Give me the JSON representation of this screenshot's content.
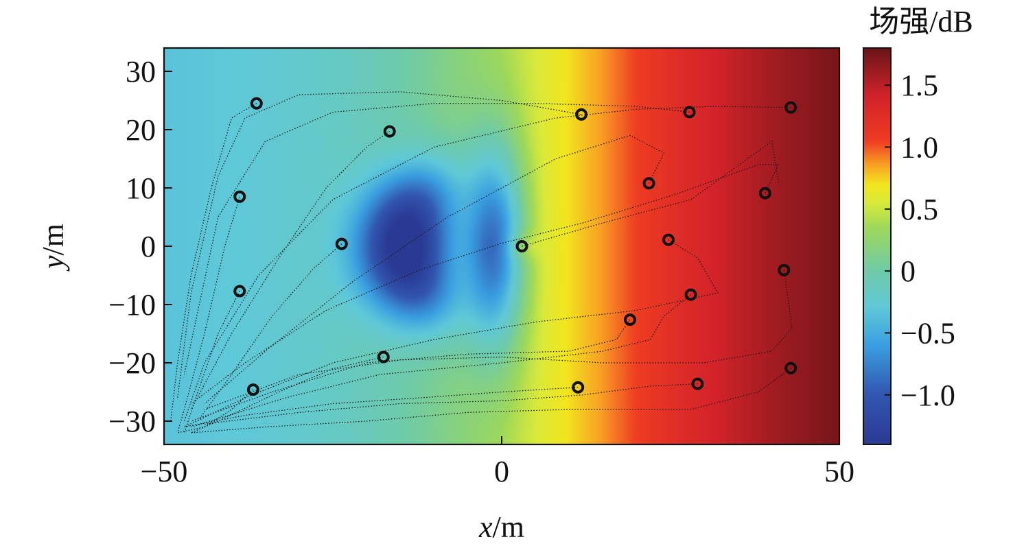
{
  "chart_data": {
    "type": "heatmap",
    "xlabel": {
      "var": "x",
      "unit": "/m"
    },
    "ylabel": {
      "var": "y",
      "unit": "/m"
    },
    "xlim": [
      -50,
      50
    ],
    "ylim": [
      -34,
      34
    ],
    "x_ticks": [
      -50,
      0,
      50
    ],
    "x_tick_labels": [
      "−50",
      "0",
      "50"
    ],
    "y_ticks": [
      30,
      20,
      10,
      0,
      -10,
      -20,
      -30
    ],
    "y_tick_labels": [
      "30",
      "20",
      "10",
      "0",
      "−10",
      "−20",
      "−30"
    ],
    "grid": false,
    "colorbar": {
      "title": "场强/dB",
      "range": [
        -1.4,
        1.8
      ],
      "ticks": [
        1.5,
        1.0,
        0.5,
        0,
        -0.5,
        -1.0
      ],
      "tick_labels": [
        "1.5",
        "1.0",
        "0.5",
        "0",
        "−0.5",
        "−1.0"
      ],
      "colormap": [
        [
          -1.4,
          "#2a3a93"
        ],
        [
          -1.0,
          "#3256b0"
        ],
        [
          -0.6,
          "#3a9ee0"
        ],
        [
          -0.3,
          "#5fc8d8"
        ],
        [
          0.0,
          "#6fcaa8"
        ],
        [
          0.35,
          "#9ed85a"
        ],
        [
          0.55,
          "#d9ea3a"
        ],
        [
          0.7,
          "#f2e51e"
        ],
        [
          0.85,
          "#f8a325"
        ],
        [
          1.05,
          "#ef3c23"
        ],
        [
          1.4,
          "#d3232a"
        ],
        [
          1.8,
          "#6a1418"
        ]
      ]
    },
    "field_description": "field strength increases from left to right, with a low-field lobe pattern around the origin",
    "sources": [
      {
        "x": 3.0,
        "y": 0.0
      }
    ],
    "markers": [
      {
        "x": -36.3,
        "y": 24.5
      },
      {
        "x": -16.6,
        "y": 19.7
      },
      {
        "x": 11.8,
        "y": 22.6
      },
      {
        "x": 27.8,
        "y": 23.0
      },
      {
        "x": 42.8,
        "y": 23.8
      },
      {
        "x": -38.8,
        "y": 8.5
      },
      {
        "x": 21.8,
        "y": 10.8
      },
      {
        "x": 39.0,
        "y": 9.1
      },
      {
        "x": -23.7,
        "y": 0.4
      },
      {
        "x": 3.0,
        "y": 0.0
      },
      {
        "x": 24.7,
        "y": 1.1
      },
      {
        "x": 41.8,
        "y": -4.1
      },
      {
        "x": -38.8,
        "y": -7.7
      },
      {
        "x": 28.0,
        "y": -8.3
      },
      {
        "x": 19.0,
        "y": -12.6
      },
      {
        "x": -17.5,
        "y": -19.0
      },
      {
        "x": 42.8,
        "y": -20.9
      },
      {
        "x": -36.8,
        "y": -24.6
      },
      {
        "x": 11.3,
        "y": -24.2
      },
      {
        "x": 29.0,
        "y": -23.6
      }
    ],
    "trajectories": [
      [
        [
          -36.3,
          24.5
        ],
        [
          -40,
          22
        ],
        [
          -43,
          10
        ],
        [
          -46,
          -5
        ],
        [
          -48,
          -20
        ],
        [
          -49,
          -30
        ]
      ],
      [
        [
          -38.8,
          8.5
        ],
        [
          -41,
          0
        ],
        [
          -44,
          -15
        ],
        [
          -47,
          -28
        ],
        [
          -48,
          -32
        ]
      ],
      [
        [
          -38.8,
          -7.7
        ],
        [
          -42,
          -15
        ],
        [
          -45,
          -25
        ],
        [
          -47,
          -32
        ]
      ],
      [
        [
          -36.8,
          -24.6
        ],
        [
          -40,
          -28
        ],
        [
          -44,
          -31
        ],
        [
          -48,
          -32
        ]
      ],
      [
        [
          -16.6,
          19.7
        ],
        [
          -20,
          17
        ],
        [
          -26,
          10
        ],
        [
          -33,
          -2
        ],
        [
          -40,
          -15
        ],
        [
          -46,
          -28
        ]
      ],
      [
        [
          -23.7,
          0.4
        ],
        [
          -28,
          -4
        ],
        [
          -34,
          -12
        ],
        [
          -40,
          -22
        ],
        [
          -45,
          -30
        ]
      ],
      [
        [
          -17.5,
          -19.0
        ],
        [
          -25,
          -21
        ],
        [
          -33,
          -25
        ],
        [
          -42,
          -30
        ],
        [
          -46,
          -32
        ]
      ],
      [
        [
          11.8,
          22.6
        ],
        [
          0,
          25
        ],
        [
          -15,
          26.5
        ],
        [
          -30,
          26
        ],
        [
          -38,
          22
        ],
        [
          -42,
          12
        ],
        [
          -46,
          -8
        ],
        [
          -48,
          -26
        ]
      ],
      [
        [
          27.8,
          23.0
        ],
        [
          20,
          24
        ],
        [
          5,
          24.5
        ],
        [
          -10,
          24.5
        ],
        [
          -25,
          23
        ],
        [
          -35,
          18
        ],
        [
          -42,
          5
        ],
        [
          -47,
          -22
        ]
      ],
      [
        [
          42.8,
          23.8
        ],
        [
          32,
          24
        ],
        [
          20,
          23.5
        ],
        [
          8,
          22
        ],
        [
          -10,
          17
        ],
        [
          -25,
          8
        ],
        [
          -36,
          -5
        ],
        [
          -44,
          -20
        ],
        [
          -47,
          -30
        ]
      ],
      [
        [
          21.8,
          10.8
        ],
        [
          24,
          16
        ],
        [
          19,
          19
        ],
        [
          8,
          15
        ],
        [
          -8,
          5
        ],
        [
          -22,
          -6
        ],
        [
          -35,
          -18
        ],
        [
          -44,
          -27
        ]
      ],
      [
        [
          39.0,
          9.1
        ],
        [
          41,
          14
        ],
        [
          38,
          14
        ],
        [
          26,
          9
        ],
        [
          12,
          4
        ],
        [
          0,
          0.5
        ],
        [
          -12,
          -4
        ],
        [
          -26,
          -11
        ],
        [
          -38,
          -20
        ],
        [
          -46,
          -27
        ]
      ],
      [
        [
          3.0,
          0.0
        ],
        [
          15,
          4
        ],
        [
          28,
          8
        ],
        [
          40,
          18
        ],
        [
          41,
          11
        ]
      ],
      [
        [
          24.7,
          1.1
        ],
        [
          29,
          -2
        ],
        [
          32,
          -8
        ],
        [
          28,
          -9
        ],
        [
          20,
          -11
        ],
        [
          5,
          -13
        ],
        [
          -10,
          -16
        ],
        [
          -25,
          -20
        ],
        [
          -38,
          -26
        ],
        [
          -47,
          -31
        ]
      ],
      [
        [
          41.8,
          -4.1
        ],
        [
          43,
          -14
        ],
        [
          40,
          -18
        ],
        [
          30,
          -20
        ],
        [
          15,
          -20
        ],
        [
          0,
          -19
        ],
        [
          -15,
          -19.5
        ],
        [
          -30,
          -22
        ],
        [
          -44,
          -28
        ]
      ],
      [
        [
          28.0,
          -8.3
        ],
        [
          24,
          -12
        ],
        [
          22,
          -16
        ],
        [
          15,
          -18
        ],
        [
          0,
          -20
        ],
        [
          -18,
          -22
        ],
        [
          -32,
          -26
        ],
        [
          -46,
          -31
        ]
      ],
      [
        [
          19.0,
          -12.6
        ],
        [
          17,
          -16
        ],
        [
          10,
          -18
        ],
        [
          -5,
          -18.5
        ],
        [
          -20,
          -20
        ],
        [
          -34,
          -25
        ],
        [
          -46,
          -30
        ]
      ],
      [
        [
          42.8,
          -20.9
        ],
        [
          38,
          -25
        ],
        [
          28,
          -28
        ],
        [
          10,
          -28
        ],
        [
          -5,
          -28.5
        ],
        [
          -20,
          -30
        ],
        [
          -35,
          -31
        ],
        [
          -46,
          -32
        ]
      ],
      [
        [
          11.3,
          -24.2
        ],
        [
          0,
          -25
        ],
        [
          -12,
          -26
        ],
        [
          -25,
          -27
        ],
        [
          -38,
          -29
        ],
        [
          -47,
          -31
        ]
      ],
      [
        [
          29.0,
          -23.6
        ],
        [
          22,
          -24
        ],
        [
          12,
          -25.5
        ],
        [
          0,
          -26.5
        ],
        [
          -15,
          -27
        ],
        [
          -30,
          -28.5
        ],
        [
          -44,
          -30.5
        ]
      ]
    ]
  }
}
